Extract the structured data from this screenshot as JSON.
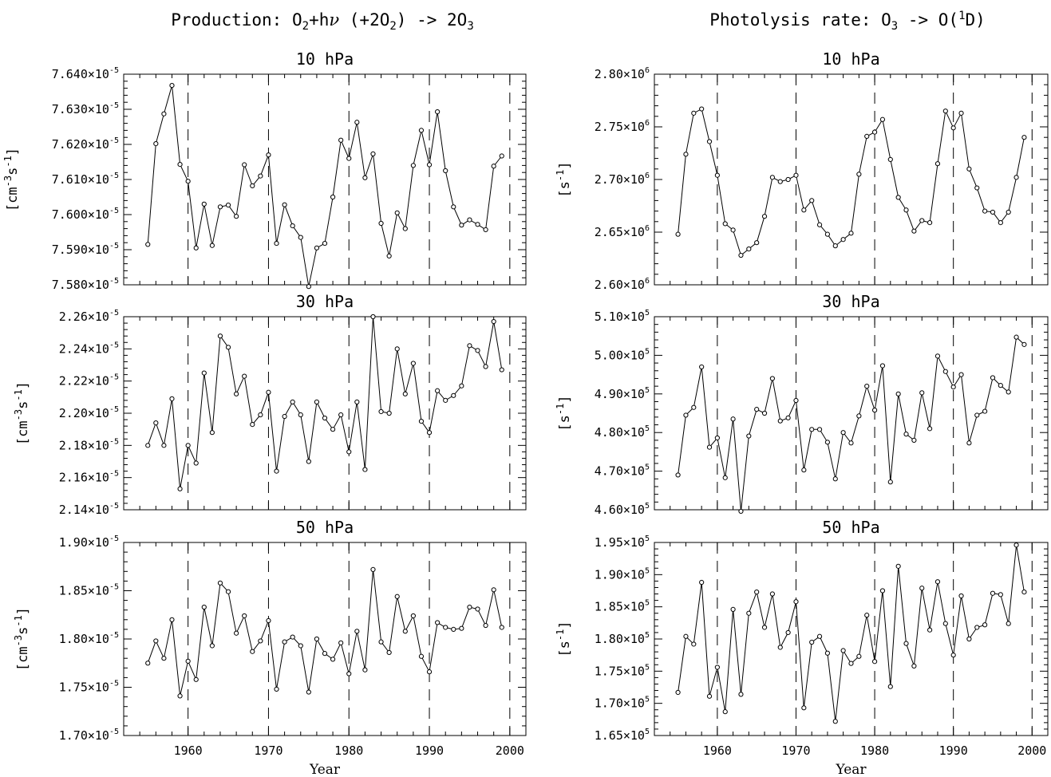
{
  "figure": {
    "col_titles": [
      {
        "main": "Production: O",
        "sub1": "2",
        "mid": "+h",
        "nu": "ν",
        "rest": " (+2O",
        "sub2": "2",
        "end": ") -> 2O",
        "sub3": "3"
      },
      {
        "main": "Photolysis rate: O",
        "sub1": "3",
        "mid": " -> O(",
        "sup": "1",
        "end": "D)"
      }
    ],
    "xlabel": "Year"
  },
  "chart_data": [
    {
      "type": "line",
      "title": "10 hPa",
      "column": 0,
      "row": 0,
      "ylabel": {
        "pre": "[cm",
        "sup1": "-3",
        "mid": "s",
        "sup2": "-1",
        "post": "]"
      },
      "x": [
        1955,
        1956,
        1957,
        1958,
        1959,
        1960,
        1961,
        1962,
        1963,
        1964,
        1965,
        1966,
        1967,
        1968,
        1969,
        1970,
        1971,
        1972,
        1973,
        1974,
        1975,
        1976,
        1977,
        1978,
        1979,
        1980,
        1981,
        1982,
        1983,
        1984,
        1985,
        1986,
        1987,
        1988,
        1989,
        1990,
        1991,
        1992,
        1993,
        1994,
        1995,
        1996,
        1997,
        1998,
        1999
      ],
      "values": [
        7.5915,
        7.6202,
        7.6287,
        7.6368,
        7.6143,
        7.6095,
        7.5905,
        7.603,
        7.5912,
        7.6022,
        7.6027,
        7.5995,
        7.6142,
        7.6082,
        7.611,
        7.617,
        7.5918,
        7.6028,
        7.5968,
        7.5935,
        7.5795,
        7.5905,
        7.5918,
        7.605,
        7.6212,
        7.616,
        7.6263,
        7.6105,
        7.6173,
        7.5975,
        7.5882,
        7.6005,
        7.596,
        7.614,
        7.624,
        7.6142,
        7.6293,
        7.6125,
        7.6022,
        7.597,
        7.5985,
        7.5972,
        7.5957,
        7.6138,
        7.6167
      ],
      "ylim": [
        7.58,
        7.64
      ],
      "yticks": [
        7.58,
        7.59,
        7.6,
        7.61,
        7.62,
        7.63,
        7.64
      ],
      "ytick_labels": [
        {
          "m": "7.580",
          "x": "×10",
          "e": "-5"
        },
        {
          "m": "7.590",
          "x": "×10",
          "e": "-5"
        },
        {
          "m": "7.600",
          "x": "×10",
          "e": "-5"
        },
        {
          "m": "7.610",
          "x": "×10",
          "e": "-5"
        },
        {
          "m": "7.620",
          "x": "×10",
          "e": "-5"
        },
        {
          "m": "7.630",
          "x": "×10",
          "e": "-5"
        },
        {
          "m": "7.640",
          "x": "×10",
          "e": "-5"
        }
      ],
      "xlim": [
        1952,
        2002
      ],
      "decade_lines": [
        1960,
        1970,
        1980,
        1990,
        2000
      ],
      "show_xlabels": false
    },
    {
      "type": "line",
      "title": "30 hPa",
      "column": 0,
      "row": 1,
      "ylabel": {
        "pre": "[cm",
        "sup1": "-3",
        "mid": "s",
        "sup2": "-1",
        "post": "]"
      },
      "x": [
        1955,
        1956,
        1957,
        1958,
        1959,
        1960,
        1961,
        1962,
        1963,
        1964,
        1965,
        1966,
        1967,
        1968,
        1969,
        1970,
        1971,
        1972,
        1973,
        1974,
        1975,
        1976,
        1977,
        1978,
        1979,
        1980,
        1981,
        1982,
        1983,
        1984,
        1985,
        1986,
        1987,
        1988,
        1989,
        1990,
        1991,
        1992,
        1993,
        1994,
        1995,
        1996,
        1997,
        1998,
        1999
      ],
      "values": [
        2.18,
        2.194,
        2.18,
        2.209,
        2.153,
        2.18,
        2.169,
        2.225,
        2.188,
        2.248,
        2.241,
        2.212,
        2.223,
        2.193,
        2.199,
        2.213,
        2.164,
        2.198,
        2.207,
        2.199,
        2.17,
        2.207,
        2.197,
        2.19,
        2.199,
        2.176,
        2.207,
        2.165,
        2.26,
        2.201,
        2.2,
        2.24,
        2.212,
        2.231,
        2.195,
        2.188,
        2.214,
        2.208,
        2.211,
        2.217,
        2.242,
        2.239,
        2.229,
        2.257,
        2.227
      ],
      "ylim": [
        2.14,
        2.26
      ],
      "yticks": [
        2.14,
        2.16,
        2.18,
        2.2,
        2.22,
        2.24,
        2.26
      ],
      "ytick_labels": [
        {
          "m": "2.14",
          "x": "×10",
          "e": "-5"
        },
        {
          "m": "2.16",
          "x": "×10",
          "e": "-5"
        },
        {
          "m": "2.18",
          "x": "×10",
          "e": "-5"
        },
        {
          "m": "2.20",
          "x": "×10",
          "e": "-5"
        },
        {
          "m": "2.22",
          "x": "×10",
          "e": "-5"
        },
        {
          "m": "2.24",
          "x": "×10",
          "e": "-5"
        },
        {
          "m": "2.26",
          "x": "×10",
          "e": "-5"
        }
      ],
      "xlim": [
        1952,
        2002
      ],
      "decade_lines": [
        1960,
        1970,
        1980,
        1990,
        2000
      ],
      "show_xlabels": false
    },
    {
      "type": "line",
      "title": "50 hPa",
      "column": 0,
      "row": 2,
      "ylabel": {
        "pre": "[cm",
        "sup1": "-3",
        "mid": "s",
        "sup2": "-1",
        "post": "]"
      },
      "x": [
        1955,
        1956,
        1957,
        1958,
        1959,
        1960,
        1961,
        1962,
        1963,
        1964,
        1965,
        1966,
        1967,
        1968,
        1969,
        1970,
        1971,
        1972,
        1973,
        1974,
        1975,
        1976,
        1977,
        1978,
        1979,
        1980,
        1981,
        1982,
        1983,
        1984,
        1985,
        1986,
        1987,
        1988,
        1989,
        1990,
        1991,
        1992,
        1993,
        1994,
        1995,
        1996,
        1997,
        1998,
        1999
      ],
      "values": [
        1.775,
        1.798,
        1.78,
        1.82,
        1.741,
        1.777,
        1.758,
        1.833,
        1.793,
        1.858,
        1.849,
        1.806,
        1.824,
        1.787,
        1.798,
        1.819,
        1.748,
        1.797,
        1.802,
        1.793,
        1.745,
        1.8,
        1.785,
        1.779,
        1.796,
        1.764,
        1.808,
        1.768,
        1.872,
        1.797,
        1.786,
        1.844,
        1.808,
        1.824,
        1.782,
        1.766,
        1.817,
        1.812,
        1.81,
        1.811,
        1.833,
        1.831,
        1.814,
        1.851,
        1.812
      ],
      "ylim": [
        1.7,
        1.9
      ],
      "yticks": [
        1.7,
        1.75,
        1.8,
        1.85,
        1.9
      ],
      "ytick_labels": [
        {
          "m": "1.70",
          "x": "×10",
          "e": "-5"
        },
        {
          "m": "1.75",
          "x": "×10",
          "e": "-5"
        },
        {
          "m": "1.80",
          "x": "×10",
          "e": "-5"
        },
        {
          "m": "1.85",
          "x": "×10",
          "e": "-5"
        },
        {
          "m": "1.90",
          "x": "×10",
          "e": "-5"
        }
      ],
      "xlim": [
        1952,
        2002
      ],
      "decade_lines": [
        1960,
        1970,
        1980,
        1990,
        2000
      ],
      "show_xlabels": true,
      "xtick_labels": [
        "1960",
        "1970",
        "1980",
        "1990",
        "2000"
      ]
    },
    {
      "type": "line",
      "title": "10 hPa",
      "column": 1,
      "row": 0,
      "ylabel": {
        "pre": "[s",
        "sup1": "-1",
        "post": "]"
      },
      "x": [
        1955,
        1956,
        1957,
        1958,
        1959,
        1960,
        1961,
        1962,
        1963,
        1964,
        1965,
        1966,
        1967,
        1968,
        1969,
        1970,
        1971,
        1972,
        1973,
        1974,
        1975,
        1976,
        1977,
        1978,
        1979,
        1980,
        1981,
        1982,
        1983,
        1984,
        1985,
        1986,
        1987,
        1988,
        1989,
        1990,
        1991,
        1992,
        1993,
        1994,
        1995,
        1996,
        1997,
        1998,
        1999
      ],
      "values": [
        2.648,
        2.724,
        2.763,
        2.767,
        2.736,
        2.704,
        2.658,
        2.652,
        2.628,
        2.634,
        2.64,
        2.665,
        2.702,
        2.698,
        2.7,
        2.704,
        2.671,
        2.68,
        2.657,
        2.648,
        2.637,
        2.643,
        2.649,
        2.705,
        2.741,
        2.745,
        2.757,
        2.719,
        2.683,
        2.671,
        2.651,
        2.661,
        2.659,
        2.715,
        2.765,
        2.749,
        2.763,
        2.71,
        2.692,
        2.67,
        2.669,
        2.659,
        2.669,
        2.702,
        2.74
      ],
      "ylim": [
        2.6,
        2.8
      ],
      "yticks": [
        2.6,
        2.65,
        2.7,
        2.75,
        2.8
      ],
      "ytick_labels": [
        {
          "m": "2.60",
          "x": "×10",
          "e": "6"
        },
        {
          "m": "2.65",
          "x": "×10",
          "e": "6"
        },
        {
          "m": "2.70",
          "x": "×10",
          "e": "6"
        },
        {
          "m": "2.75",
          "x": "×10",
          "e": "6"
        },
        {
          "m": "2.80",
          "x": "×10",
          "e": "6"
        }
      ],
      "xlim": [
        1952,
        2002
      ],
      "decade_lines": [
        1960,
        1970,
        1980,
        1990,
        2000
      ],
      "show_xlabels": false
    },
    {
      "type": "line",
      "title": "30 hPa",
      "column": 1,
      "row": 1,
      "ylabel": {
        "pre": "[s",
        "sup1": "-1",
        "post": "]"
      },
      "x": [
        1955,
        1956,
        1957,
        1958,
        1959,
        1960,
        1961,
        1962,
        1963,
        1964,
        1965,
        1966,
        1967,
        1968,
        1969,
        1970,
        1971,
        1972,
        1973,
        1974,
        1975,
        1976,
        1977,
        1978,
        1979,
        1980,
        1981,
        1982,
        1983,
        1984,
        1985,
        1986,
        1987,
        1988,
        1989,
        1990,
        1991,
        1992,
        1993,
        1994,
        1995,
        1996,
        1997,
        1998,
        1999
      ],
      "values": [
        4.69,
        4.845,
        4.865,
        4.97,
        4.762,
        4.786,
        4.683,
        4.835,
        4.596,
        4.791,
        4.86,
        4.85,
        4.94,
        4.83,
        4.838,
        4.883,
        4.703,
        4.808,
        4.808,
        4.775,
        4.68,
        4.8,
        4.773,
        4.843,
        4.92,
        4.858,
        4.973,
        4.672,
        4.9,
        4.796,
        4.78,
        4.903,
        4.81,
        4.998,
        4.958,
        4.918,
        4.95,
        4.773,
        4.845,
        4.855,
        4.942,
        4.922,
        4.905,
        5.047,
        5.028
      ],
      "ylim": [
        4.6,
        5.1
      ],
      "yticks": [
        4.6,
        4.7,
        4.8,
        4.9,
        5.0,
        5.1
      ],
      "ytick_labels": [
        {
          "m": "4.60",
          "x": "×10",
          "e": "5"
        },
        {
          "m": "4.70",
          "x": "×10",
          "e": "5"
        },
        {
          "m": "4.80",
          "x": "×10",
          "e": "5"
        },
        {
          "m": "4.90",
          "x": "×10",
          "e": "5"
        },
        {
          "m": "5.00",
          "x": "×10",
          "e": "5"
        },
        {
          "m": "5.10",
          "x": "×10",
          "e": "5"
        }
      ],
      "xlim": [
        1952,
        2002
      ],
      "decade_lines": [
        1960,
        1970,
        1980,
        1990,
        2000
      ],
      "show_xlabels": false
    },
    {
      "type": "line",
      "title": "50 hPa",
      "column": 1,
      "row": 2,
      "ylabel": {
        "pre": "[s",
        "sup1": "-1",
        "post": "]"
      },
      "x": [
        1955,
        1956,
        1957,
        1958,
        1959,
        1960,
        1961,
        1962,
        1963,
        1964,
        1965,
        1966,
        1967,
        1968,
        1969,
        1970,
        1971,
        1972,
        1973,
        1974,
        1975,
        1976,
        1977,
        1978,
        1979,
        1980,
        1981,
        1982,
        1983,
        1984,
        1985,
        1986,
        1987,
        1988,
        1989,
        1990,
        1991,
        1992,
        1993,
        1994,
        1995,
        1996,
        1997,
        1998,
        1999
      ],
      "values": [
        1.717,
        1.804,
        1.792,
        1.888,
        1.711,
        1.756,
        1.687,
        1.846,
        1.714,
        1.84,
        1.873,
        1.818,
        1.87,
        1.787,
        1.81,
        1.858,
        1.693,
        1.795,
        1.804,
        1.778,
        1.672,
        1.782,
        1.762,
        1.773,
        1.837,
        1.765,
        1.875,
        1.726,
        1.913,
        1.793,
        1.758,
        1.879,
        1.814,
        1.889,
        1.824,
        1.775,
        1.867,
        1.8,
        1.818,
        1.822,
        1.871,
        1.869,
        1.824,
        1.946,
        1.873
      ],
      "ylim": [
        1.65,
        1.95
      ],
      "yticks": [
        1.65,
        1.7,
        1.75,
        1.8,
        1.85,
        1.9,
        1.95
      ],
      "ytick_labels": [
        {
          "m": "1.65",
          "x": "×10",
          "e": "5"
        },
        {
          "m": "1.70",
          "x": "×10",
          "e": "5"
        },
        {
          "m": "1.75",
          "x": "×10",
          "e": "5"
        },
        {
          "m": "1.80",
          "x": "×10",
          "e": "5"
        },
        {
          "m": "1.85",
          "x": "×10",
          "e": "5"
        },
        {
          "m": "1.90",
          "x": "×10",
          "e": "5"
        },
        {
          "m": "1.95",
          "x": "×10",
          "e": "5"
        }
      ],
      "xlim": [
        1952,
        2002
      ],
      "decade_lines": [
        1960,
        1970,
        1980,
        1990,
        2000
      ],
      "show_xlabels": true,
      "xtick_labels": [
        "1960",
        "1970",
        "1980",
        "1990",
        "2000"
      ]
    }
  ]
}
